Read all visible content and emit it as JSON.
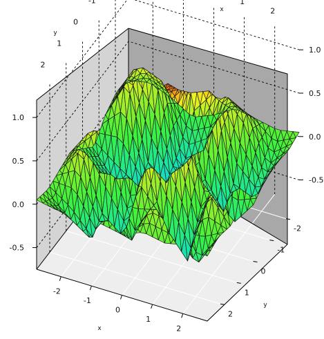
{
  "chart_data": {
    "type": "surface3d",
    "title": "",
    "xlabel": "x",
    "ylabel": "y",
    "zlabel": "",
    "xlim": [
      -2.8,
      2.8
    ],
    "ylim": [
      -2.8,
      2.8
    ],
    "zlim": [
      -0.75,
      1.2
    ],
    "x_ticks": [
      "-2",
      "-1",
      "0",
      "1",
      "2"
    ],
    "y_ticks": [
      "-2",
      "-1",
      "0",
      "1",
      "2"
    ],
    "z_ticks": [
      "-0.5",
      "0.0",
      "0.5",
      "1.0"
    ],
    "x_tick_values": [
      -2,
      -1,
      0,
      1,
      2
    ],
    "y_tick_values": [
      -2,
      -1,
      0,
      1,
      2
    ],
    "z_tick_values": [
      -0.5,
      0.0,
      0.5,
      1.0
    ],
    "grid": true,
    "colormap": [
      "#0bd6f2",
      "#1ee88f",
      "#3ef23a",
      "#9aef2a",
      "#f2f21e",
      "#f58d15",
      "#e0440c"
    ],
    "peak_color": "#e85a10",
    "surface": {
      "x": [
        -2.8,
        -2.1,
        -1.4,
        -0.7,
        0.0,
        0.7,
        1.4,
        2.1,
        2.8
      ],
      "y": [
        -2.8,
        -2.1,
        -1.4,
        -0.7,
        0.0,
        0.7,
        1.4,
        2.1,
        2.8
      ],
      "z": [
        [
          0.05,
          0.1,
          0.0,
          -0.15,
          -0.05,
          0.1,
          0.05,
          0.0,
          0.05
        ],
        [
          0.1,
          0.5,
          0.4,
          -0.55,
          -0.35,
          0.45,
          0.3,
          -0.3,
          0.0
        ],
        [
          0.0,
          0.45,
          -0.4,
          -0.6,
          0.55,
          0.65,
          -0.35,
          -0.45,
          0.05
        ],
        [
          -0.2,
          -0.5,
          -0.55,
          0.6,
          0.75,
          -0.3,
          -0.55,
          0.4,
          0.0
        ],
        [
          -0.05,
          -0.3,
          0.65,
          0.8,
          1.0,
          0.7,
          0.3,
          -0.4,
          -0.1
        ],
        [
          0.1,
          0.45,
          0.6,
          -0.25,
          0.75,
          0.6,
          -0.2,
          0.35,
          0.05
        ],
        [
          0.05,
          0.35,
          -0.3,
          -0.5,
          0.4,
          -0.25,
          -0.55,
          0.3,
          0.0
        ],
        [
          0.0,
          -0.25,
          -0.45,
          0.35,
          -0.3,
          0.3,
          0.25,
          -0.4,
          0.05
        ],
        [
          0.05,
          0.0,
          0.05,
          0.0,
          -0.05,
          0.05,
          0.0,
          0.05,
          0.0
        ]
      ]
    }
  }
}
